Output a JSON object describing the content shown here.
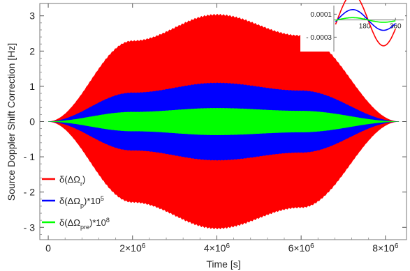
{
  "chart_data": {
    "type": "area",
    "xlabel": "Time [s]",
    "ylabel": "Source Doppler Shift Correction [Hz]",
    "xlim": [
      -200000,
      8500000
    ],
    "ylim": [
      -3.35,
      3.35
    ],
    "x_ticks": [
      {
        "value": 0,
        "label": "0"
      },
      {
        "value": 2000000,
        "label": "2×10",
        "exp": "6"
      },
      {
        "value": 4000000,
        "label": "4×10",
        "exp": "6"
      },
      {
        "value": 6000000,
        "label": "6×10",
        "exp": "6"
      },
      {
        "value": 8000000,
        "label": "8×10",
        "exp": "6"
      }
    ],
    "y_ticks": [
      {
        "value": 3,
        "label": "3"
      },
      {
        "value": 2,
        "label": "2"
      },
      {
        "value": 1,
        "label": "1"
      },
      {
        "value": 0,
        "label": "0"
      },
      {
        "value": -1,
        "label": "- 1"
      },
      {
        "value": -2,
        "label": "- 2"
      },
      {
        "value": -3,
        "label": "- 3"
      }
    ],
    "x_span": [
      0,
      8320000
    ],
    "series": [
      {
        "name": "δ(ΔΩ",
        "sub": "r",
        "suffix": ")",
        "color": "#ff0000",
        "x": [
          0,
          2000000,
          4000000,
          6000000,
          8320000
        ],
        "envelope": [
          0,
          2.3,
          3.05,
          2.45,
          0
        ]
      },
      {
        "name": "δ(ΔΩ",
        "sub": "p",
        "suffix": ")*10",
        "sup": "5",
        "color": "#0000ff",
        "x": [
          0,
          2000000,
          4000000,
          6000000,
          8320000
        ],
        "envelope": [
          0,
          0.82,
          1.1,
          0.88,
          0
        ]
      },
      {
        "name": "δ(ΔΩ",
        "sub": "pre",
        "suffix": ")*10",
        "sup": "8",
        "color": "#00ff00",
        "x": [
          0,
          2000000,
          4000000,
          6000000,
          8320000
        ],
        "envelope": [
          0,
          0.27,
          0.38,
          0.3,
          0
        ]
      }
    ],
    "legend_position": "bottom-left",
    "inset": {
      "y_ticks": [
        {
          "value": 0.0001,
          "label": "0.0001"
        },
        {
          "value": -0.0003,
          "label": "- 0.0003"
        }
      ],
      "x_ticks": [
        {
          "value": 180,
          "label": "180"
        },
        {
          "value": 360,
          "label": "360"
        }
      ],
      "xlim": [
        0,
        400
      ],
      "ylim": [
        -0.00055,
        0.00025
      ]
    }
  }
}
